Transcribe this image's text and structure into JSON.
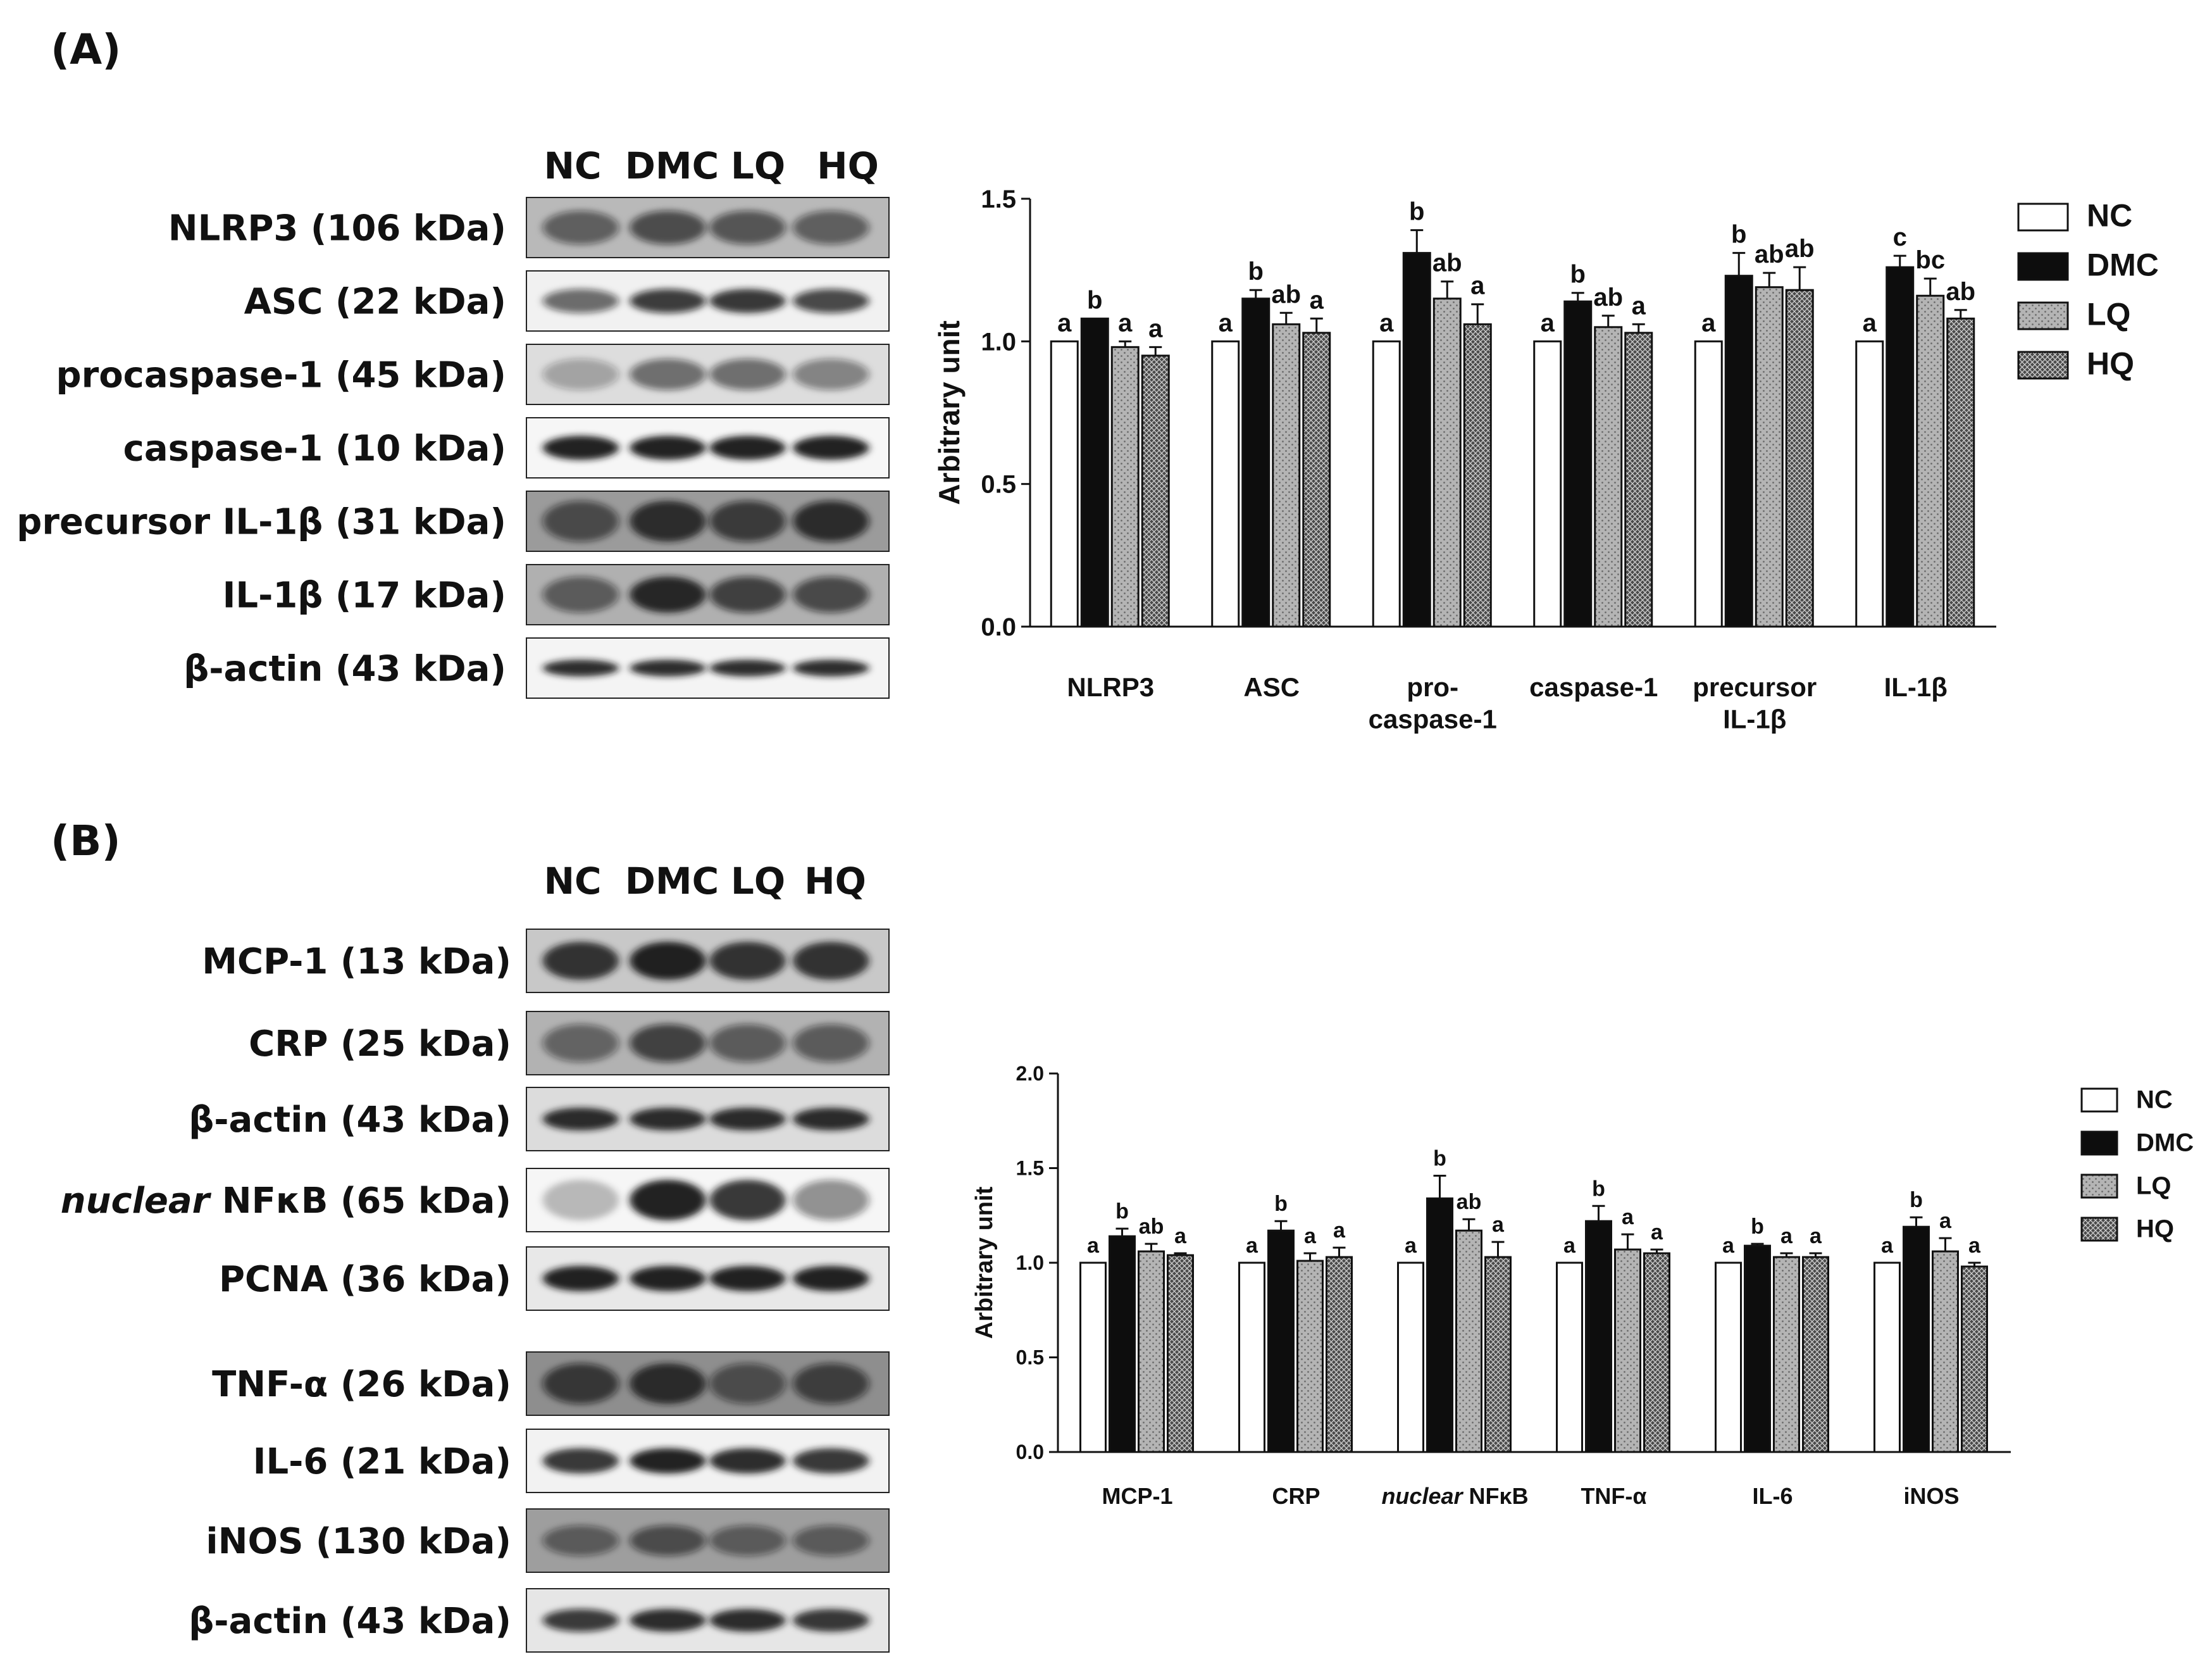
{
  "panel_a": {
    "label": "(A)",
    "blot": {
      "lanes": [
        "NC",
        "DMC",
        "LQ",
        "HQ"
      ],
      "rows": [
        {
          "label": "NLRP3 (106 kDa)"
        },
        {
          "label": "ASC (22 kDa)"
        },
        {
          "label": "procaspase-1 (45 kDa)"
        },
        {
          "label": "caspase-1 (10 kDa)"
        },
        {
          "label": "precursor IL-1β (31 kDa)"
        },
        {
          "label": "IL-1β (17 kDa)"
        },
        {
          "label": "β-actin (43 kDa)"
        }
      ]
    }
  },
  "panel_b": {
    "label": "(B)",
    "blot": {
      "lanes": [
        "NC",
        "DMC",
        "LQ",
        "HQ"
      ],
      "rows": [
        {
          "label": "MCP-1 (13 kDa)"
        },
        {
          "label": "CRP (25 kDa)"
        },
        {
          "label": "β-actin (43 kDa)"
        },
        {
          "label_italic": "nuclear",
          "label": "NFκB (65 kDa)"
        },
        {
          "label": "PCNA (36 kDa)"
        },
        {
          "label": "TNF-α (26 kDa)"
        },
        {
          "label": "IL-6 (21 kDa)"
        },
        {
          "label": "iNOS (130 kDa)"
        },
        {
          "label": "β-actin (43 kDa)"
        }
      ]
    }
  },
  "chart_data": [
    {
      "type": "bar",
      "title": "",
      "xlabel": "",
      "ylabel": "Arbitrary unit",
      "ylim": [
        0,
        1.5
      ],
      "yticks": [
        "0.0",
        "0.5",
        "1.0",
        "1.5"
      ],
      "categories": [
        "NLRP3",
        "ASC",
        "pro-\ncaspase-1",
        "caspase-1",
        "precursor\nIL-1β",
        "IL-1β"
      ],
      "series": [
        {
          "name": "NC",
          "pattern": "white",
          "values": [
            1.0,
            1.0,
            1.0,
            1.0,
            1.0,
            1.0
          ],
          "errors": [
            0,
            0,
            0,
            0,
            0,
            0
          ],
          "letters": [
            "a",
            "a",
            "a",
            "a",
            "a",
            "a"
          ]
        },
        {
          "name": "DMC",
          "pattern": "black",
          "values": [
            1.08,
            1.15,
            1.31,
            1.14,
            1.23,
            1.26
          ],
          "errors": [
            0,
            0.03,
            0.08,
            0.03,
            0.08,
            0.04
          ],
          "letters": [
            "b",
            "b",
            "b",
            "b",
            "b",
            "c"
          ]
        },
        {
          "name": "LQ",
          "pattern": "dots",
          "values": [
            0.98,
            1.06,
            1.15,
            1.05,
            1.19,
            1.16
          ],
          "errors": [
            0.02,
            0.04,
            0.06,
            0.04,
            0.05,
            0.06
          ],
          "letters": [
            "a",
            "ab",
            "ab",
            "ab",
            "ab",
            "bc"
          ]
        },
        {
          "name": "HQ",
          "pattern": "crosshatch",
          "values": [
            0.95,
            1.03,
            1.06,
            1.03,
            1.18,
            1.08
          ],
          "errors": [
            0.03,
            0.05,
            0.07,
            0.03,
            0.08,
            0.03
          ],
          "letters": [
            "a",
            "a",
            "a",
            "a",
            "ab",
            "ab"
          ]
        }
      ],
      "legend": [
        "NC",
        "DMC",
        "LQ",
        "HQ"
      ]
    },
    {
      "type": "bar",
      "title": "",
      "xlabel": "",
      "ylabel": "Arbitrary unit",
      "ylim": [
        0,
        2.0
      ],
      "yticks": [
        "0.0",
        "0.5",
        "1.0",
        "1.5",
        "2.0"
      ],
      "categories": [
        "MCP-1",
        "CRP",
        "nuclear NFκB",
        "TNF-α",
        "IL-6",
        "iNOS"
      ],
      "series": [
        {
          "name": "NC",
          "pattern": "white",
          "values": [
            1.0,
            1.0,
            1.0,
            1.0,
            1.0,
            1.0
          ],
          "errors": [
            0,
            0,
            0,
            0,
            0,
            0
          ],
          "letters": [
            "a",
            "a",
            "a",
            "a",
            "a",
            "a"
          ]
        },
        {
          "name": "DMC",
          "pattern": "black",
          "values": [
            1.14,
            1.17,
            1.34,
            1.22,
            1.09,
            1.19
          ],
          "errors": [
            0.04,
            0.05,
            0.12,
            0.08,
            0.01,
            0.05
          ],
          "letters": [
            "b",
            "b",
            "b",
            "b",
            "b",
            "b"
          ]
        },
        {
          "name": "LQ",
          "pattern": "dots",
          "values": [
            1.06,
            1.01,
            1.17,
            1.07,
            1.03,
            1.06
          ],
          "errors": [
            0.04,
            0.04,
            0.06,
            0.08,
            0.02,
            0.07
          ],
          "letters": [
            "ab",
            "a",
            "ab",
            "a",
            "a",
            "a"
          ]
        },
        {
          "name": "HQ",
          "pattern": "crosshatch",
          "values": [
            1.04,
            1.03,
            1.03,
            1.05,
            1.03,
            0.98
          ],
          "errors": [
            0.01,
            0.05,
            0.08,
            0.02,
            0.02,
            0.02
          ],
          "letters": [
            "a",
            "a",
            "a",
            "a",
            "a",
            "a"
          ]
        }
      ],
      "legend": [
        "NC",
        "DMC",
        "LQ",
        "HQ"
      ]
    }
  ]
}
